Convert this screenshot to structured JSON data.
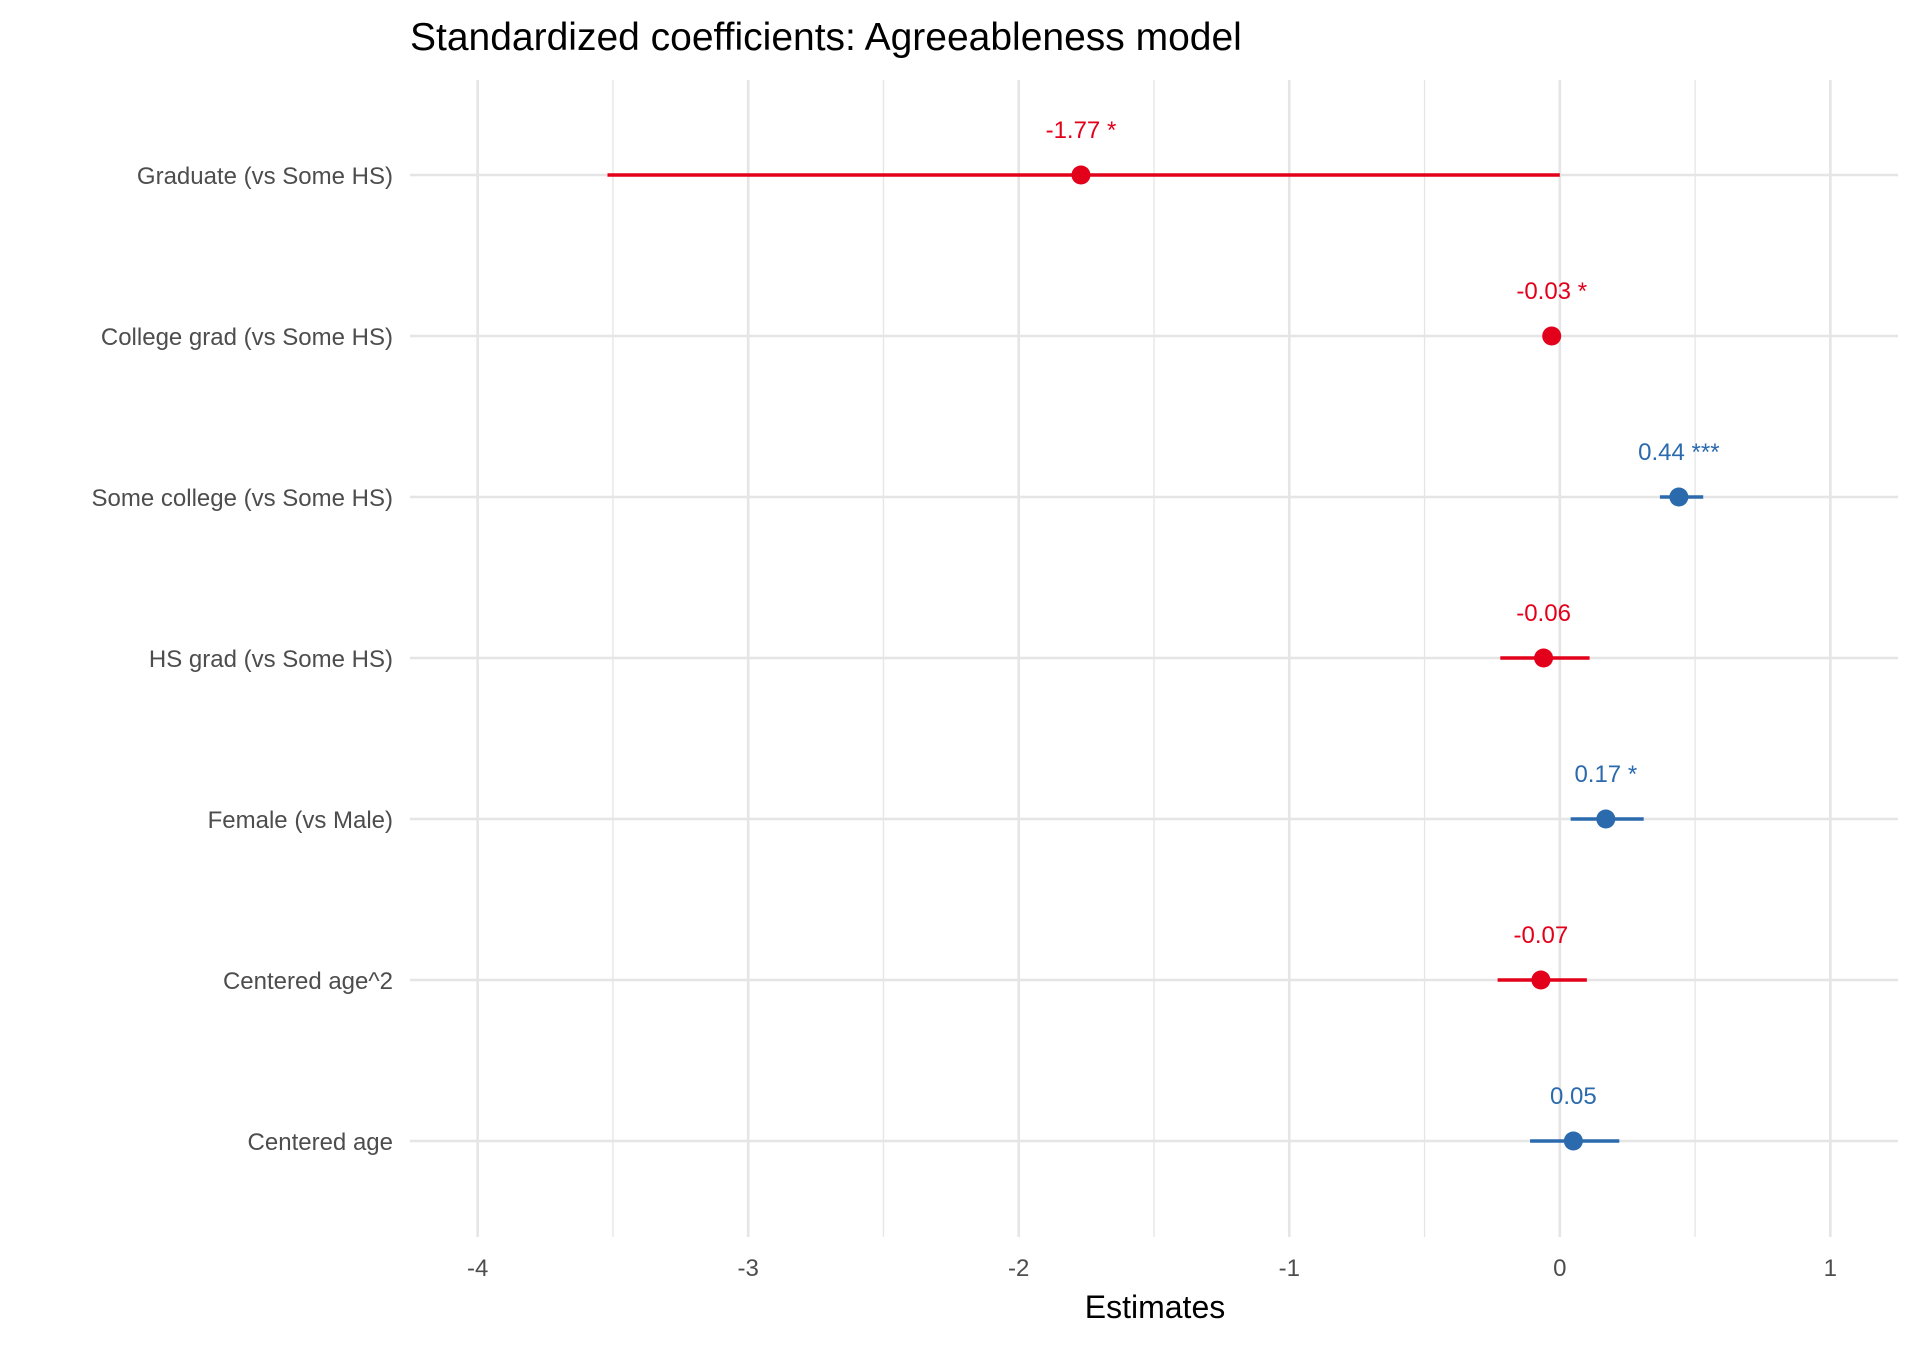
{
  "chart_data": {
    "type": "forest",
    "title": "Standardized coefficients: Agreeableness model",
    "xlabel": "Estimates",
    "ylabel": "",
    "xlim": [
      -4.25,
      1.25
    ],
    "xticks": [
      -4,
      -3,
      -2,
      -1,
      0,
      1
    ],
    "xtick_labels": [
      "-4",
      "-3",
      "-2",
      "-1",
      "0",
      "1"
    ],
    "grid": true,
    "colors": {
      "negative": "#e3001b",
      "positive": "#2b6aad",
      "grid": "#e5e5e5",
      "text": "#4d4d4d"
    },
    "terms": [
      {
        "label": "Graduate (vs Some HS)",
        "estimate": -1.77,
        "ci_low": -3.52,
        "ci_high": 0.0,
        "annotation": "-1.77 *"
      },
      {
        "label": "College grad (vs Some HS)",
        "estimate": -0.03,
        "ci_low": -0.04,
        "ci_high": -0.02,
        "annotation": "-0.03 *"
      },
      {
        "label": "Some college (vs Some HS)",
        "estimate": 0.44,
        "ci_low": 0.37,
        "ci_high": 0.53,
        "annotation": "0.44 ***"
      },
      {
        "label": "HS grad (vs Some HS)",
        "estimate": -0.06,
        "ci_low": -0.22,
        "ci_high": 0.11,
        "annotation": "-0.06"
      },
      {
        "label": "Female (vs Male)",
        "estimate": 0.17,
        "ci_low": 0.04,
        "ci_high": 0.31,
        "annotation": "0.17 *"
      },
      {
        "label": "Centered age^2",
        "estimate": -0.07,
        "ci_low": -0.23,
        "ci_high": 0.1,
        "annotation": "-0.07"
      },
      {
        "label": "Centered age",
        "estimate": 0.05,
        "ci_low": -0.11,
        "ci_high": 0.22,
        "annotation": "0.05"
      }
    ]
  }
}
